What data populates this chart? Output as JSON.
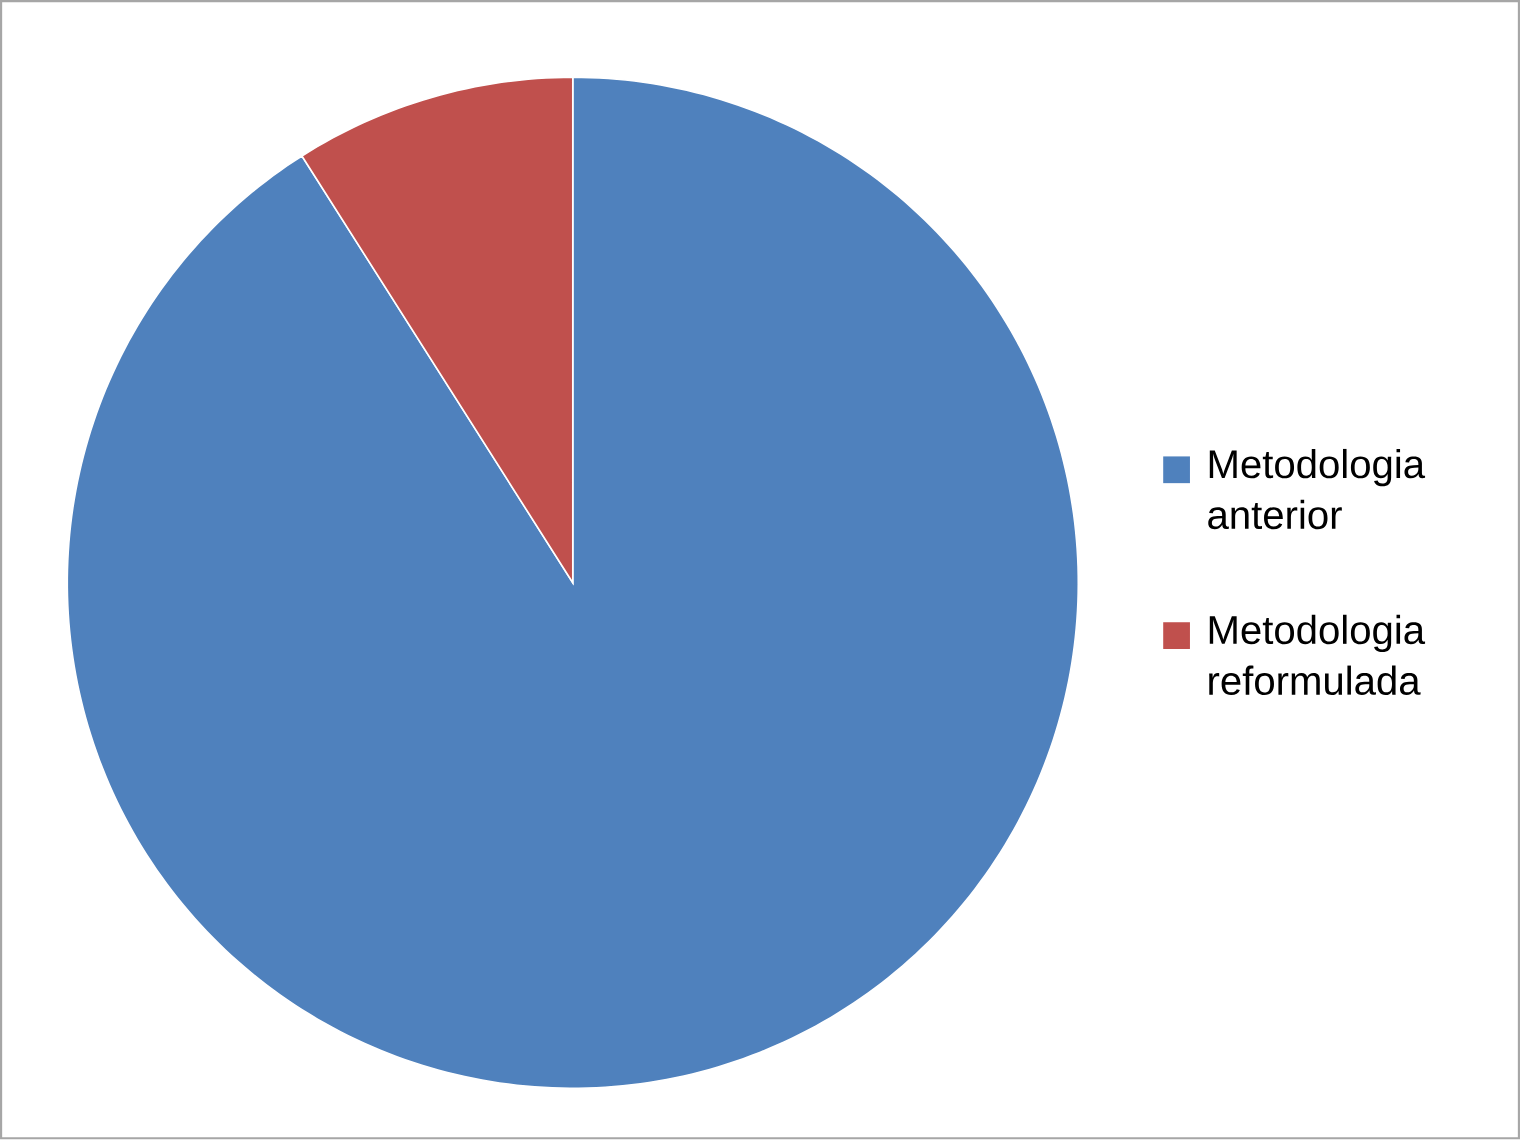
{
  "chart_data": {
    "type": "pie",
    "categories": [
      "Metodologia anterior",
      "Metodologia reformulada"
    ],
    "values": [
      91,
      9
    ],
    "colors": [
      "#4f81bd",
      "#c0504d"
    ],
    "legend": "right"
  }
}
